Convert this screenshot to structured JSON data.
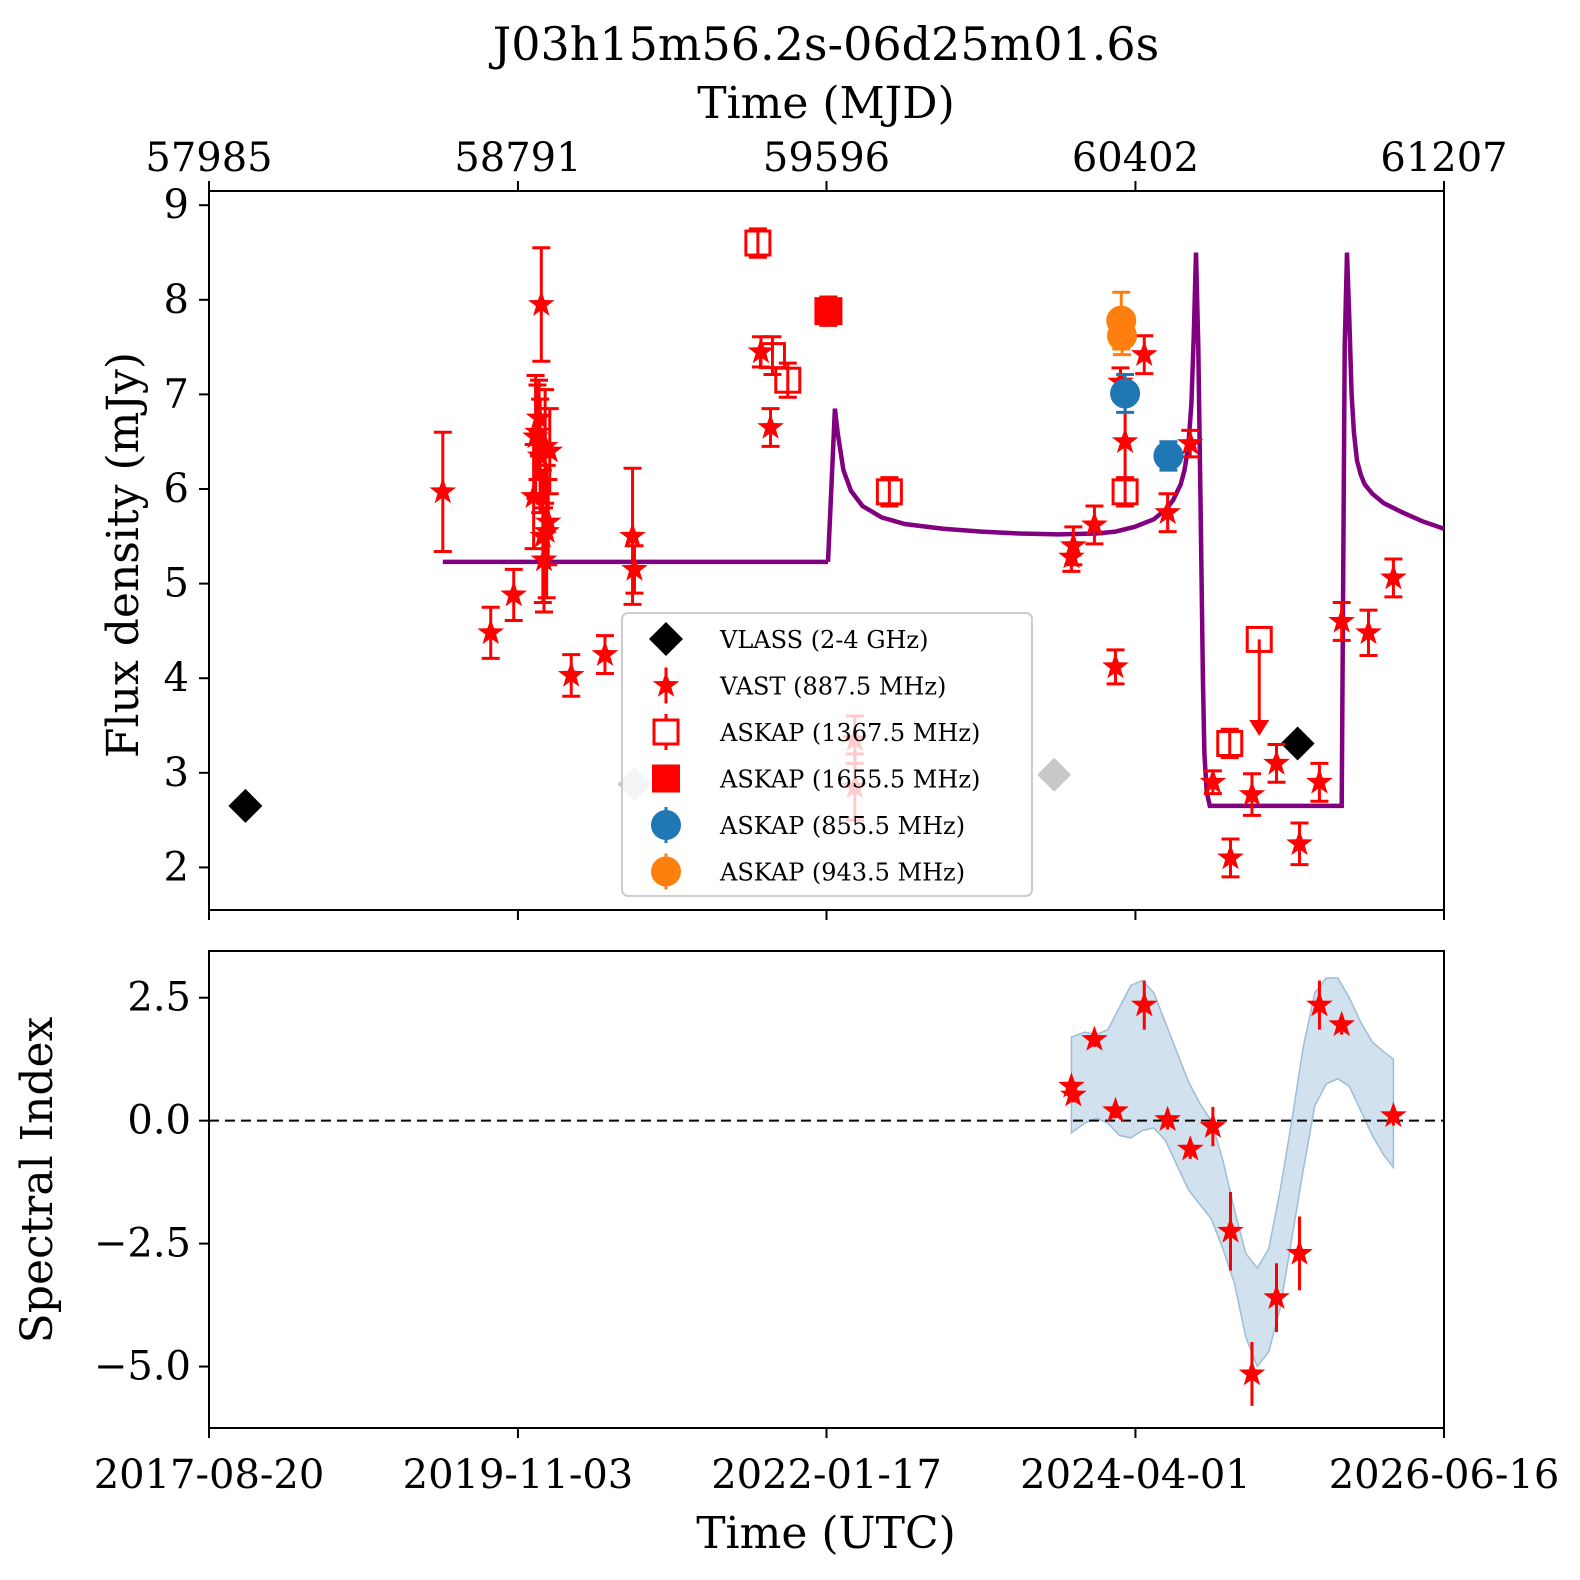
{
  "chart_data": [
    {
      "id": "flux",
      "type": "scatter",
      "title": "J03h15m56.2s-06d25m01.6s",
      "xlabel_top": "Time (MJD)",
      "xticks_top": [
        "57985",
        "58791",
        "59596",
        "60402",
        "61207"
      ],
      "ylabel": "Flux density (mJy)",
      "yticks": [
        "2",
        "3",
        "4",
        "5",
        "6",
        "7",
        "8",
        "9"
      ],
      "ylim": [
        1.55,
        9.15
      ],
      "xlim_mjd": [
        57985,
        61207
      ],
      "legend_position": "lower center",
      "colors": {
        "vlass": "#000000",
        "vast": "#ff0000",
        "askap1367": "#ff0000",
        "askap1655": "#ff0000",
        "askap855": "#1f77b4",
        "askap943": "#ff7f0e",
        "model": "#800080",
        "upper_limit_faded": "#c8c8c8"
      },
      "series": [
        {
          "key": "vlass",
          "name": "VLASS (2-4 GHz)",
          "marker": "diamond",
          "points": [
            {
              "mjd": 58080,
              "y": 2.65
            },
            {
              "mjd": 59095,
              "y": 2.88
            },
            {
              "mjd": 60190,
              "y": 2.98
            },
            {
              "mjd": 60825,
              "y": 3.31
            }
          ],
          "upper_limit_mjd": [
            59095,
            60190
          ]
        },
        {
          "key": "vast",
          "name": "VAST (887.5 MHz)",
          "marker": "star",
          "points": [
            {
              "mjd": 58595,
              "y": 5.97,
              "err": 0.63
            },
            {
              "mjd": 58720,
              "y": 4.48,
              "err": 0.27
            },
            {
              "mjd": 58780,
              "y": 4.88,
              "err": 0.27
            },
            {
              "mjd": 58832,
              "y": 5.92,
              "err": 0.55
            },
            {
              "mjd": 58837,
              "y": 6.55,
              "err": 0.65
            },
            {
              "mjd": 58842,
              "y": 6.6,
              "err": 0.5
            },
            {
              "mjd": 58846,
              "y": 6.75,
              "err": 0.4
            },
            {
              "mjd": 58849,
              "y": 6.35,
              "err": 0.6
            },
            {
              "mjd": 58852,
              "y": 7.95,
              "err": 0.6
            },
            {
              "mjd": 58856,
              "y": 5.5,
              "err": 0.7
            },
            {
              "mjd": 58859,
              "y": 5.25,
              "err": 0.55
            },
            {
              "mjd": 58862,
              "y": 6.45,
              "err": 0.6
            },
            {
              "mjd": 58866,
              "y": 5.55,
              "err": 0.7
            },
            {
              "mjd": 58870,
              "y": 5.65,
              "err": 0.45
            },
            {
              "mjd": 58874,
              "y": 6.4,
              "err": 0.45
            },
            {
              "mjd": 58930,
              "y": 4.03,
              "err": 0.22
            },
            {
              "mjd": 59018,
              "y": 4.25,
              "err": 0.2
            },
            {
              "mjd": 59090,
              "y": 5.5,
              "err": 0.72
            },
            {
              "mjd": 59095,
              "y": 5.15,
              "err": 0.25
            },
            {
              "mjd": 59425,
              "y": 7.45,
              "err": 0.16
            },
            {
              "mjd": 59450,
              "y": 6.65,
              "err": 0.2
            },
            {
              "mjd": 59670,
              "y": 3.35,
              "err": 0.25
            },
            {
              "mjd": 59670,
              "y": 2.85,
              "err": 0.35
            },
            {
              "mjd": 60235,
              "y": 5.28,
              "err": 0.15
            },
            {
              "mjd": 60240,
              "y": 5.4,
              "err": 0.2
            },
            {
              "mjd": 60295,
              "y": 5.62,
              "err": 0.2
            },
            {
              "mjd": 60350,
              "y": 4.12,
              "err": 0.18
            },
            {
              "mjd": 60363,
              "y": 7.13,
              "err": 0.15
            },
            {
              "mjd": 60375,
              "y": 6.5,
              "err": 0.4
            },
            {
              "mjd": 60425,
              "y": 7.42,
              "err": 0.2
            },
            {
              "mjd": 60486,
              "y": 5.75,
              "err": 0.2
            },
            {
              "mjd": 60545,
              "y": 6.48,
              "err": 0.14
            },
            {
              "mjd": 60604,
              "y": 2.9,
              "err": 0.12
            },
            {
              "mjd": 60650,
              "y": 2.1,
              "err": 0.2
            },
            {
              "mjd": 60706,
              "y": 2.77,
              "err": 0.22
            },
            {
              "mjd": 60770,
              "y": 3.1,
              "err": 0.2
            },
            {
              "mjd": 60830,
              "y": 2.25,
              "err": 0.22
            },
            {
              "mjd": 60882,
              "y": 2.9,
              "err": 0.2
            },
            {
              "mjd": 60940,
              "y": 4.6,
              "err": 0.2
            },
            {
              "mjd": 61010,
              "y": 4.48,
              "err": 0.24
            },
            {
              "mjd": 61075,
              "y": 5.06,
              "err": 0.2
            }
          ]
        },
        {
          "key": "askap1367",
          "name": "ASKAP (1367.5 MHz)",
          "marker": "open-square",
          "points": [
            {
              "mjd": 59417,
              "y": 8.6,
              "err": 0.15
            },
            {
              "mjd": 59455,
              "y": 7.41,
              "err": 0.2
            },
            {
              "mjd": 59495,
              "y": 7.15,
              "err": 0.18
            },
            {
              "mjd": 59760,
              "y": 5.97,
              "err": 0.15
            },
            {
              "mjd": 60375,
              "y": 5.97,
              "err": 0.15
            },
            {
              "mjd": 60648,
              "y": 3.31,
              "err": 0.15
            },
            {
              "mjd": 60725,
              "y": 4.41,
              "upper_limit": true
            }
          ]
        },
        {
          "key": "askap1655",
          "name": "ASKAP (1655.5 MHz)",
          "marker": "filled-square",
          "points": [
            {
              "mjd": 59601,
              "y": 7.88,
              "err": 0.15
            }
          ]
        },
        {
          "key": "askap855",
          "name": "ASKAP (855.5 MHz)",
          "marker": "circle",
          "points": [
            {
              "mjd": 60375,
              "y": 7.01,
              "err": 0.2
            },
            {
              "mjd": 60488,
              "y": 6.35,
              "err": 0.15
            }
          ]
        },
        {
          "key": "askap943",
          "name": "ASKAP (943.5 MHz)",
          "marker": "circle",
          "points": [
            {
              "mjd": 60365,
              "y": 7.78,
              "err": 0.3
            },
            {
              "mjd": 60367,
              "y": 7.62,
              "err": 0.2
            }
          ]
        }
      ],
      "model_segments": [
        {
          "x": [
            58595,
            59600
          ],
          "y": [
            5.23,
            5.23
          ]
        },
        {
          "x": [
            59600,
            59612,
            59618,
            59625,
            59640,
            59660,
            59690,
            59740,
            59800,
            59900,
            60000,
            60100,
            60200,
            60300,
            60350,
            60400,
            60450,
            60480,
            60500,
            60520,
            60530,
            60540,
            60548,
            60554,
            60560,
            60566,
            60572,
            60578,
            60582,
            60588,
            60596,
            60604,
            60700,
            60800,
            60900,
            60940,
            60948,
            60954,
            60960,
            60966,
            60972,
            60980,
            60990,
            61000,
            61020,
            61050,
            61100,
            61150,
            61207
          ],
          "y": [
            5.23,
            6.3,
            6.85,
            6.6,
            6.2,
            5.98,
            5.82,
            5.7,
            5.63,
            5.58,
            5.55,
            5.53,
            5.52,
            5.53,
            5.55,
            5.6,
            5.68,
            5.78,
            5.88,
            6.05,
            6.2,
            6.45,
            6.9,
            7.6,
            8.5,
            7.5,
            5.8,
            4.0,
            3.2,
            2.8,
            2.65,
            2.65,
            2.65,
            2.65,
            2.65,
            2.65,
            7.5,
            8.5,
            7.8,
            7.0,
            6.6,
            6.3,
            6.15,
            6.05,
            5.95,
            5.85,
            5.75,
            5.66,
            5.58
          ]
        }
      ]
    },
    {
      "id": "spectral_index",
      "type": "scatter",
      "xlabel": "Time (UTC)",
      "xticks": [
        "2017-08-20",
        "2019-11-03",
        "2022-01-17",
        "2024-04-01",
        "2026-06-16"
      ],
      "ylabel": "Spectral Index",
      "yticks": [
        "2.5",
        "0.0",
        "−2.5",
        "−5.0"
      ],
      "yticks_values": [
        2.5,
        0.0,
        -2.5,
        -5.0
      ],
      "ylim": [
        -6.25,
        3.45
      ],
      "reference_line_y": 0.0,
      "colors": {
        "points": "#ff0000",
        "band": "#b3cde3",
        "band_edge": "#9ebdd8"
      },
      "points": [
        {
          "mjd": 60235,
          "y": 0.7,
          "err": 0.2
        },
        {
          "mjd": 60240,
          "y": 0.52,
          "err": 0.15
        },
        {
          "mjd": 60295,
          "y": 1.65,
          "err": 0.15
        },
        {
          "mjd": 60350,
          "y": 0.2,
          "err": 0.15
        },
        {
          "mjd": 60425,
          "y": 2.35,
          "err": 0.5
        },
        {
          "mjd": 60486,
          "y": 0.02,
          "err": 0.2
        },
        {
          "mjd": 60545,
          "y": -0.58,
          "err": 0.2
        },
        {
          "mjd": 60604,
          "y": -0.12,
          "err": 0.4
        },
        {
          "mjd": 60650,
          "y": -2.25,
          "err": 0.8
        },
        {
          "mjd": 60706,
          "y": -5.15,
          "err": 0.65
        },
        {
          "mjd": 60770,
          "y": -3.6,
          "err": 0.7
        },
        {
          "mjd": 60830,
          "y": -2.7,
          "err": 0.75
        },
        {
          "mjd": 60882,
          "y": 2.35,
          "err": 0.5
        },
        {
          "mjd": 60940,
          "y": 1.95,
          "err": 0.2
        },
        {
          "mjd": 61075,
          "y": 0.1,
          "err": 0.2
        }
      ],
      "band": {
        "x": [
          60235,
          60270,
          60300,
          60330,
          60360,
          60390,
          60420,
          60450,
          60480,
          60510,
          60540,
          60570,
          60600,
          60630,
          60660,
          60690,
          60720,
          60750,
          60780,
          60810,
          60840,
          60870,
          60900,
          60930,
          60960,
          60990,
          61020,
          61050,
          61075
        ],
        "upper": [
          1.7,
          1.8,
          1.75,
          1.85,
          2.3,
          2.75,
          2.85,
          2.6,
          2.0,
          1.4,
          0.8,
          0.35,
          0.0,
          -0.8,
          -1.8,
          -2.7,
          -3.0,
          -2.6,
          -1.4,
          0.0,
          1.5,
          2.6,
          2.9,
          2.9,
          2.5,
          2.0,
          1.6,
          1.4,
          1.25
        ],
        "lower": [
          -0.25,
          -0.05,
          0.05,
          -0.05,
          -0.3,
          -0.35,
          -0.2,
          -0.15,
          -0.4,
          -0.9,
          -1.4,
          -1.7,
          -2.0,
          -2.6,
          -3.3,
          -4.4,
          -5.0,
          -4.7,
          -3.8,
          -2.4,
          -1.0,
          0.3,
          0.75,
          0.85,
          0.7,
          0.2,
          -0.3,
          -0.7,
          -0.95
        ]
      }
    }
  ]
}
